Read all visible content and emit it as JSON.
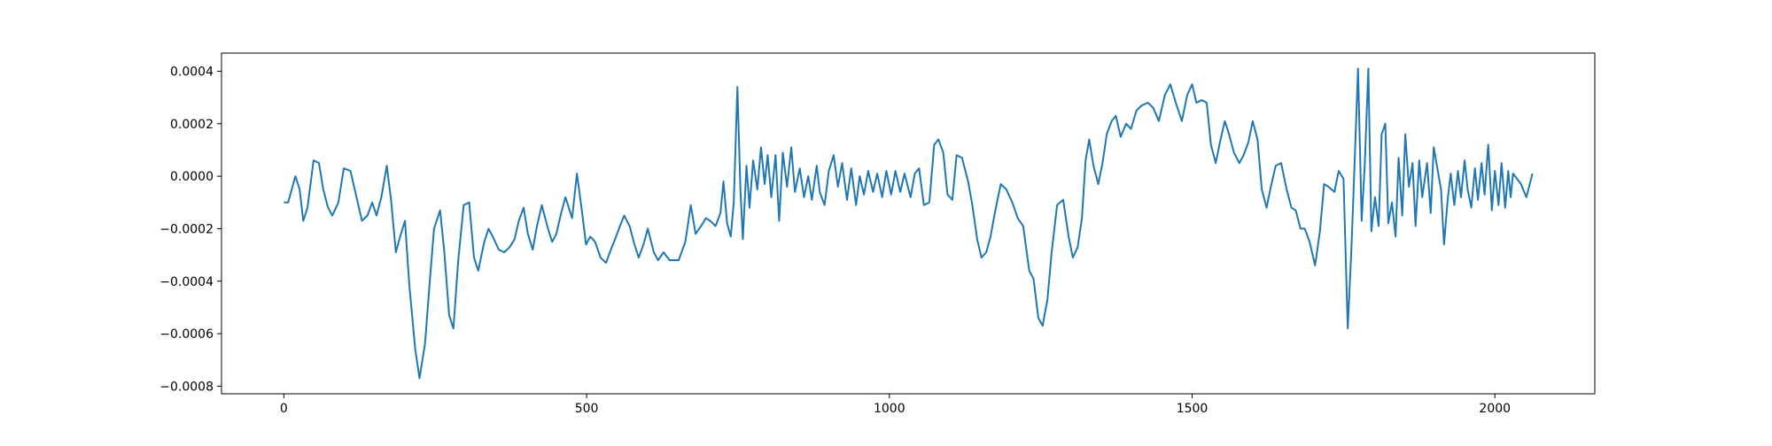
{
  "chart_data": {
    "type": "line",
    "color": "#1f77b4",
    "x": [
      0,
      7,
      13,
      19,
      26,
      32,
      39,
      49,
      58,
      65,
      73,
      80,
      90,
      99,
      110,
      120,
      129,
      138,
      146,
      153,
      161,
      170,
      177,
      185,
      192,
      200,
      207,
      217,
      224,
      233,
      241,
      248,
      258,
      265,
      273,
      280,
      288,
      297,
      306,
      314,
      321,
      331,
      338,
      345,
      355,
      364,
      373,
      381,
      388,
      396,
      403,
      411,
      418,
      426,
      435,
      443,
      450,
      458,
      465,
      476,
      484,
      491,
      499,
      506,
      514,
      523,
      532,
      540,
      547,
      555,
      562,
      571,
      579,
      586,
      594,
      601,
      611,
      618,
      627,
      637,
      652,
      663,
      672,
      680,
      689,
      697,
      704,
      713,
      721,
      726,
      732,
      738,
      743,
      749,
      754,
      758,
      764,
      769,
      775,
      782,
      788,
      794,
      799,
      805,
      812,
      818,
      824,
      831,
      838,
      844,
      852,
      859,
      866,
      872,
      880,
      885,
      893,
      900,
      908,
      915,
      922,
      930,
      937,
      945,
      951,
      958,
      965,
      973,
      980,
      988,
      995,
      1003,
      1010,
      1018,
      1025,
      1035,
      1042,
      1049,
      1057,
      1066,
      1074,
      1081,
      1089,
      1096,
      1104,
      1111,
      1120,
      1130,
      1137,
      1145,
      1152,
      1160,
      1167,
      1175,
      1184,
      1193,
      1203,
      1212,
      1221,
      1231,
      1238,
      1246,
      1253,
      1261,
      1268,
      1277,
      1287,
      1296,
      1303,
      1311,
      1318,
      1324,
      1330,
      1337,
      1345,
      1352,
      1359,
      1367,
      1374,
      1382,
      1391,
      1399,
      1408,
      1417,
      1427,
      1436,
      1445,
      1455,
      1464,
      1473,
      1483,
      1492,
      1500,
      1507,
      1516,
      1524,
      1531,
      1539,
      1546,
      1554,
      1561,
      1569,
      1578,
      1585,
      1593,
      1600,
      1608,
      1615,
      1623,
      1630,
      1638,
      1647,
      1656,
      1664,
      1671,
      1679,
      1686,
      1694,
      1703,
      1711,
      1718,
      1725,
      1735,
      1742,
      1750,
      1757,
      1763,
      1768,
      1774,
      1780,
      1785,
      1791,
      1796,
      1802,
      1808,
      1813,
      1819,
      1824,
      1830,
      1836,
      1841,
      1847,
      1852,
      1858,
      1864,
      1869,
      1875,
      1880,
      1888,
      1894,
      1899,
      1905,
      1911,
      1916,
      1922,
      1927,
      1933,
      1939,
      1944,
      1950,
      1955,
      1961,
      1967,
      1972,
      1978,
      1983,
      1989,
      1995,
      2000,
      2006,
      2011,
      2017,
      2022,
      2026,
      2030,
      2043,
      2052,
      2062
    ],
    "values": [
      -0.0001,
      -0.0001,
      -5e-05,
      0,
      -5e-05,
      -0.00017,
      -0.00012,
      6e-05,
      5e-05,
      -5e-05,
      -0.00012,
      -0.00015,
      -0.0001,
      3e-05,
      2e-05,
      -8e-05,
      -0.00017,
      -0.00015,
      -0.0001,
      -0.00015,
      -8e-05,
      4e-05,
      -9e-05,
      -0.00029,
      -0.00023,
      -0.00017,
      -0.00041,
      -0.00066,
      -0.00077,
      -0.00064,
      -0.0004,
      -0.0002,
      -0.00013,
      -0.00029,
      -0.00053,
      -0.00058,
      -0.00032,
      -0.00011,
      -0.0001,
      -0.00031,
      -0.00036,
      -0.00025,
      -0.0002,
      -0.00023,
      -0.00028,
      -0.00029,
      -0.00027,
      -0.00024,
      -0.00017,
      -0.00012,
      -0.00022,
      -0.00028,
      -0.00019,
      -0.00011,
      -0.00019,
      -0.00025,
      -0.00022,
      -0.00014,
      -8e-05,
      -0.00016,
      1e-05,
      -0.00011,
      -0.00026,
      -0.00023,
      -0.00025,
      -0.00031,
      -0.00033,
      -0.00028,
      -0.00024,
      -0.00019,
      -0.00015,
      -0.00019,
      -0.00026,
      -0.00031,
      -0.00026,
      -0.0002,
      -0.00029,
      -0.00032,
      -0.00029,
      -0.00032,
      -0.00032,
      -0.00025,
      -0.00011,
      -0.00022,
      -0.00019,
      -0.00016,
      -0.00017,
      -0.00019,
      -0.00014,
      -2e-05,
      -0.00018,
      -0.00023,
      -0.0001,
      0.00034,
      -5e-05,
      -0.00024,
      4e-05,
      -0.00012,
      6e-05,
      -5e-05,
      0.00011,
      -3e-05,
      8e-05,
      -8e-05,
      8e-05,
      -0.00017,
      9e-05,
      -4e-05,
      0.00011,
      -6e-05,
      3e-05,
      -8e-05,
      0,
      -9e-05,
      4e-05,
      -6e-05,
      -0.00011,
      2e-05,
      8e-05,
      -4e-05,
      5e-05,
      -9e-05,
      3e-05,
      -0.00011,
      0,
      -7e-05,
      2e-05,
      -6e-05,
      1e-05,
      -8e-05,
      2e-05,
      -7e-05,
      2e-05,
      -6e-05,
      1e-05,
      -8e-05,
      1e-05,
      3e-05,
      -0.00011,
      -0.0001,
      0.00012,
      0.00014,
      9e-05,
      -7e-05,
      -9e-05,
      8e-05,
      7e-05,
      -2e-05,
      -0.00011,
      -0.00024,
      -0.00031,
      -0.00029,
      -0.00023,
      -0.00013,
      -3e-05,
      -5e-05,
      -0.0001,
      -0.00016,
      -0.00019,
      -0.00036,
      -0.00039,
      -0.00054,
      -0.00057,
      -0.00047,
      -0.00029,
      -0.00011,
      -9e-05,
      -0.00023,
      -0.00031,
      -0.00027,
      -0.00016,
      6e-05,
      0.00014,
      4e-05,
      -3e-05,
      5e-05,
      0.00016,
      0.00021,
      0.00023,
      0.00015,
      0.0002,
      0.00018,
      0.00025,
      0.00027,
      0.00028,
      0.00026,
      0.00021,
      0.00031,
      0.00035,
      0.00028,
      0.00021,
      0.00031,
      0.00035,
      0.00028,
      0.00029,
      0.00028,
      0.00012,
      5e-05,
      0.00013,
      0.00021,
      0.00016,
      9e-05,
      5e-05,
      8e-05,
      0.00013,
      0.00021,
      0.00014,
      -5e-05,
      -0.00012,
      -4e-05,
      4e-05,
      5e-05,
      -5e-05,
      -0.00012,
      -0.00013,
      -0.0002,
      -0.0002,
      -0.00025,
      -0.00034,
      -0.00021,
      -3e-05,
      -4e-05,
      -6e-05,
      2e-05,
      -1e-05,
      -0.00058,
      -0.00028,
      3e-05,
      0.00041,
      -0.00017,
      4e-05,
      0.00041,
      -0.00021,
      -8e-05,
      -0.00019,
      0.00016,
      0.0002,
      -0.00018,
      -0.0001,
      -0.00023,
      7e-05,
      -0.00015,
      0.00016,
      -4e-05,
      5e-05,
      -0.00019,
      6e-05,
      -8e-05,
      5e-05,
      -0.00014,
      0.00011,
      3e-05,
      -5e-05,
      -0.00026,
      -9e-05,
      1e-05,
      -0.00011,
      2e-05,
      -8e-05,
      6e-05,
      -5e-05,
      -0.00012,
      3e-05,
      -9e-05,
      5e-05,
      -7e-05,
      0.00012,
      -0.00013,
      2e-05,
      -0.00011,
      5e-05,
      -0.00012,
      2e-05,
      -8e-05,
      1e-05,
      -3e-05,
      -8e-05,
      1e-05
    ],
    "xlim": [
      -103,
      2165
    ],
    "xticks": [
      0,
      500,
      1000,
      1500,
      2000
    ],
    "ylim": [
      -0.000829,
      0.000469
    ],
    "yticks": [
      {
        "value": -0.0008,
        "label": "−0.0008"
      },
      {
        "value": -0.0006,
        "label": "−0.0006"
      },
      {
        "value": -0.0004,
        "label": "−0.0004"
      },
      {
        "value": -0.0002,
        "label": "−0.0002"
      },
      {
        "value": 0,
        "label": "0.0000"
      },
      {
        "value": 0.0002,
        "label": "0.0002"
      },
      {
        "value": 0.0004,
        "label": "0.0004"
      }
    ],
    "grid": false
  }
}
